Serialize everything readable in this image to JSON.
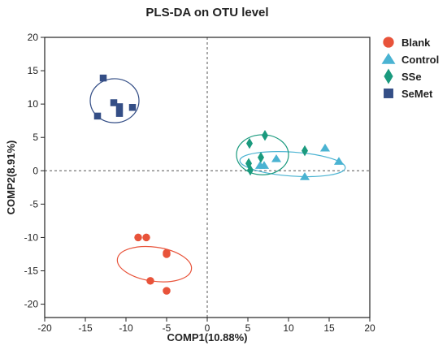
{
  "chart_data": {
    "type": "scatter",
    "title": "PLS-DA on OTU level",
    "xlabel": "COMP1(10.88%)",
    "ylabel": "COMP2(8.91%)",
    "xlim": [
      -20,
      20
    ],
    "ylim": [
      -22,
      20
    ],
    "xticks": [
      -20,
      -15,
      -10,
      -5,
      0,
      5,
      10,
      15,
      20
    ],
    "yticks": [
      -20,
      -15,
      -10,
      -5,
      0,
      5,
      10,
      15,
      20
    ],
    "reference_lines": {
      "x": 0,
      "y": 0,
      "style": "dashed"
    },
    "legend_position": "right",
    "series": [
      {
        "name": "Blank",
        "marker": "circle",
        "color": "#e8533a",
        "points": [
          [
            -8.5,
            -10
          ],
          [
            -7.5,
            -10
          ],
          [
            -5,
            -12.3
          ],
          [
            -5,
            -12.5
          ],
          [
            -7,
            -16.5
          ],
          [
            -5,
            -18
          ]
        ],
        "ellipse": {
          "center": [
            -6.5,
            -14
          ],
          "rx": 2.1,
          "ry": 5.6,
          "angle_deg": -82
        }
      },
      {
        "name": "Control",
        "marker": "triangle",
        "color": "#4ab3d2",
        "points": [
          [
            6.5,
            0.8
          ],
          [
            7,
            0.8
          ],
          [
            8.5,
            1.8
          ],
          [
            12,
            -0.9
          ],
          [
            14.5,
            3.4
          ],
          [
            16.2,
            1.4
          ]
        ],
        "ellipse": {
          "center": [
            10.5,
            1.0
          ],
          "rx": 6.5,
          "ry": 1.8,
          "angle_deg": 4
        }
      },
      {
        "name": "SSe",
        "marker": "diamond",
        "color": "#1a9a7e",
        "points": [
          [
            5.2,
            4.1
          ],
          [
            5.1,
            1.1
          ],
          [
            5.3,
            0.1
          ],
          [
            6.6,
            2.0
          ],
          [
            7.1,
            5.3
          ],
          [
            12,
            3.0
          ]
        ],
        "ellipse": {
          "center": [
            6.8,
            2.4
          ],
          "rx": 3.2,
          "ry": 3.0,
          "angle_deg": 0
        }
      },
      {
        "name": "SeMet",
        "marker": "square",
        "color": "#344e86",
        "points": [
          [
            -12.8,
            13.9
          ],
          [
            -11.5,
            10.2
          ],
          [
            -10.8,
            9.6
          ],
          [
            -10.8,
            8.6
          ],
          [
            -13.5,
            8.2
          ],
          [
            -9.2,
            9.5
          ]
        ],
        "ellipse": {
          "center": [
            -11.4,
            10.5
          ],
          "rx": 3.0,
          "ry": 3.3,
          "angle_deg": 0
        }
      }
    ]
  }
}
